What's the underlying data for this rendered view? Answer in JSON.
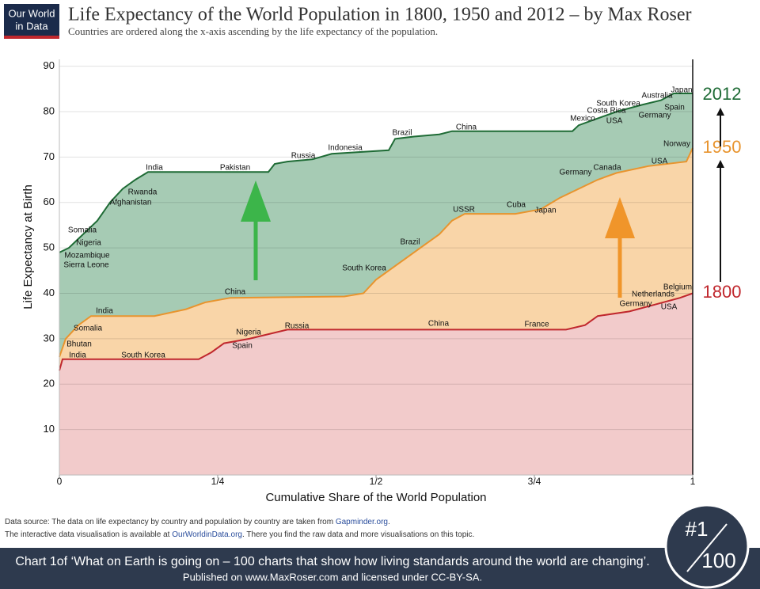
{
  "header": {
    "logo": [
      "Our World",
      "in Data"
    ],
    "title": "Life Expectancy of the World Population in 1800, 1950 and 2012 – by Max Roser",
    "subtitle": "Countries are ordered along the x-axis ascending by the life expectancy of the population."
  },
  "chart_data": {
    "type": "area",
    "x_label": "Cumulative Share of the World Population",
    "y_label": "Life Expectancy at Birth",
    "xlim": [
      0,
      1
    ],
    "ylim": [
      0,
      91.5
    ],
    "xticks": [
      0,
      {
        "value": 0.25,
        "label": "1/4"
      },
      {
        "value": 0.5,
        "label": "1/2"
      },
      {
        "value": 0.75,
        "label": "3/4"
      },
      1
    ],
    "yticks": [
      10,
      20,
      30,
      40,
      50,
      60,
      70,
      80,
      90
    ],
    "grid": true,
    "series": [
      {
        "name": "2012",
        "color": "#1e6b35",
        "fill": "#a6cbb4",
        "x": [
          0,
          0.015,
          0.03,
          0.045,
          0.06,
          0.08,
          0.1,
          0.12,
          0.14,
          0.33,
          0.34,
          0.36,
          0.4,
          0.43,
          0.52,
          0.53,
          0.56,
          0.6,
          0.62,
          0.81,
          0.82,
          0.85,
          0.88,
          0.92,
          0.95,
          0.97,
          1
        ],
        "values": [
          49,
          50,
          52,
          54,
          56,
          60,
          63,
          65,
          66.7,
          66.7,
          68.5,
          69,
          69.5,
          70.7,
          71.5,
          74,
          74.5,
          75,
          75.7,
          75.7,
          77,
          78.5,
          80,
          81.5,
          82.5,
          84,
          84
        ]
      },
      {
        "name": "1950",
        "color": "#e8942e",
        "fill": "#f9d5a8",
        "x": [
          0,
          0.01,
          0.03,
          0.05,
          0.15,
          0.2,
          0.23,
          0.27,
          0.45,
          0.48,
          0.5,
          0.54,
          0.57,
          0.6,
          0.62,
          0.64,
          0.72,
          0.76,
          0.79,
          0.82,
          0.85,
          0.88,
          0.93,
          0.99,
          1
        ],
        "values": [
          26,
          30,
          33,
          35,
          35,
          36.5,
          38,
          39,
          39.3,
          40,
          43,
          47,
          50,
          53,
          56,
          57.5,
          57.5,
          58.5,
          61,
          63,
          65,
          66.5,
          68,
          69,
          72
        ]
      },
      {
        "name": "1800",
        "color": "#c0272d",
        "fill": "#f2cbcb",
        "x": [
          0,
          0.005,
          0.22,
          0.24,
          0.26,
          0.3,
          0.33,
          0.36,
          0.8,
          0.83,
          0.85,
          0.9,
          0.94,
          0.98,
          1
        ],
        "values": [
          23,
          25.5,
          25.5,
          27,
          29,
          30,
          31,
          32,
          32,
          33,
          35,
          36,
          37.5,
          39,
          40
        ]
      }
    ],
    "annotations": [
      "India",
      "Pakistan",
      "Russia",
      "Indonesia",
      "Brazil",
      "China",
      "Mexico",
      "Costa Rica",
      "USA",
      "South Korea",
      "Germany",
      "Spain",
      "Australia",
      "Japan",
      "Rwanda",
      "Afghanistan",
      "Somalia",
      "Nigeria",
      "Mozambique",
      "Sierra Leone",
      "Norway",
      "India",
      "Somalia",
      "Bhutan",
      "China",
      "South Korea",
      "Brazil",
      "USSR",
      "Cuba",
      "Japan",
      "Germany",
      "Canada",
      "USA",
      "India",
      "South Korea",
      "Nigeria",
      "Spain",
      "Russia",
      "China",
      "France",
      "Germany",
      "Netherlands",
      "Belgium",
      "USA"
    ]
  },
  "footer": {
    "source": [
      "Data source:  The data on life expectancy by country and population by country are taken from ",
      "Gapminder.org",
      "."
    ],
    "interactive": [
      "The interactive data visualisation is available at ",
      "OurWorldinData.org",
      ". There you find the raw data and more visualisations on this topic."
    ],
    "banner": [
      "Chart 1of ‘What on Earth is going on – 100 charts that show how living standards around the world are changing’.",
      "Published on www.MaxRoser.com and licensed under CC-BY-SA."
    ],
    "badge": [
      "#1",
      "100"
    ]
  }
}
